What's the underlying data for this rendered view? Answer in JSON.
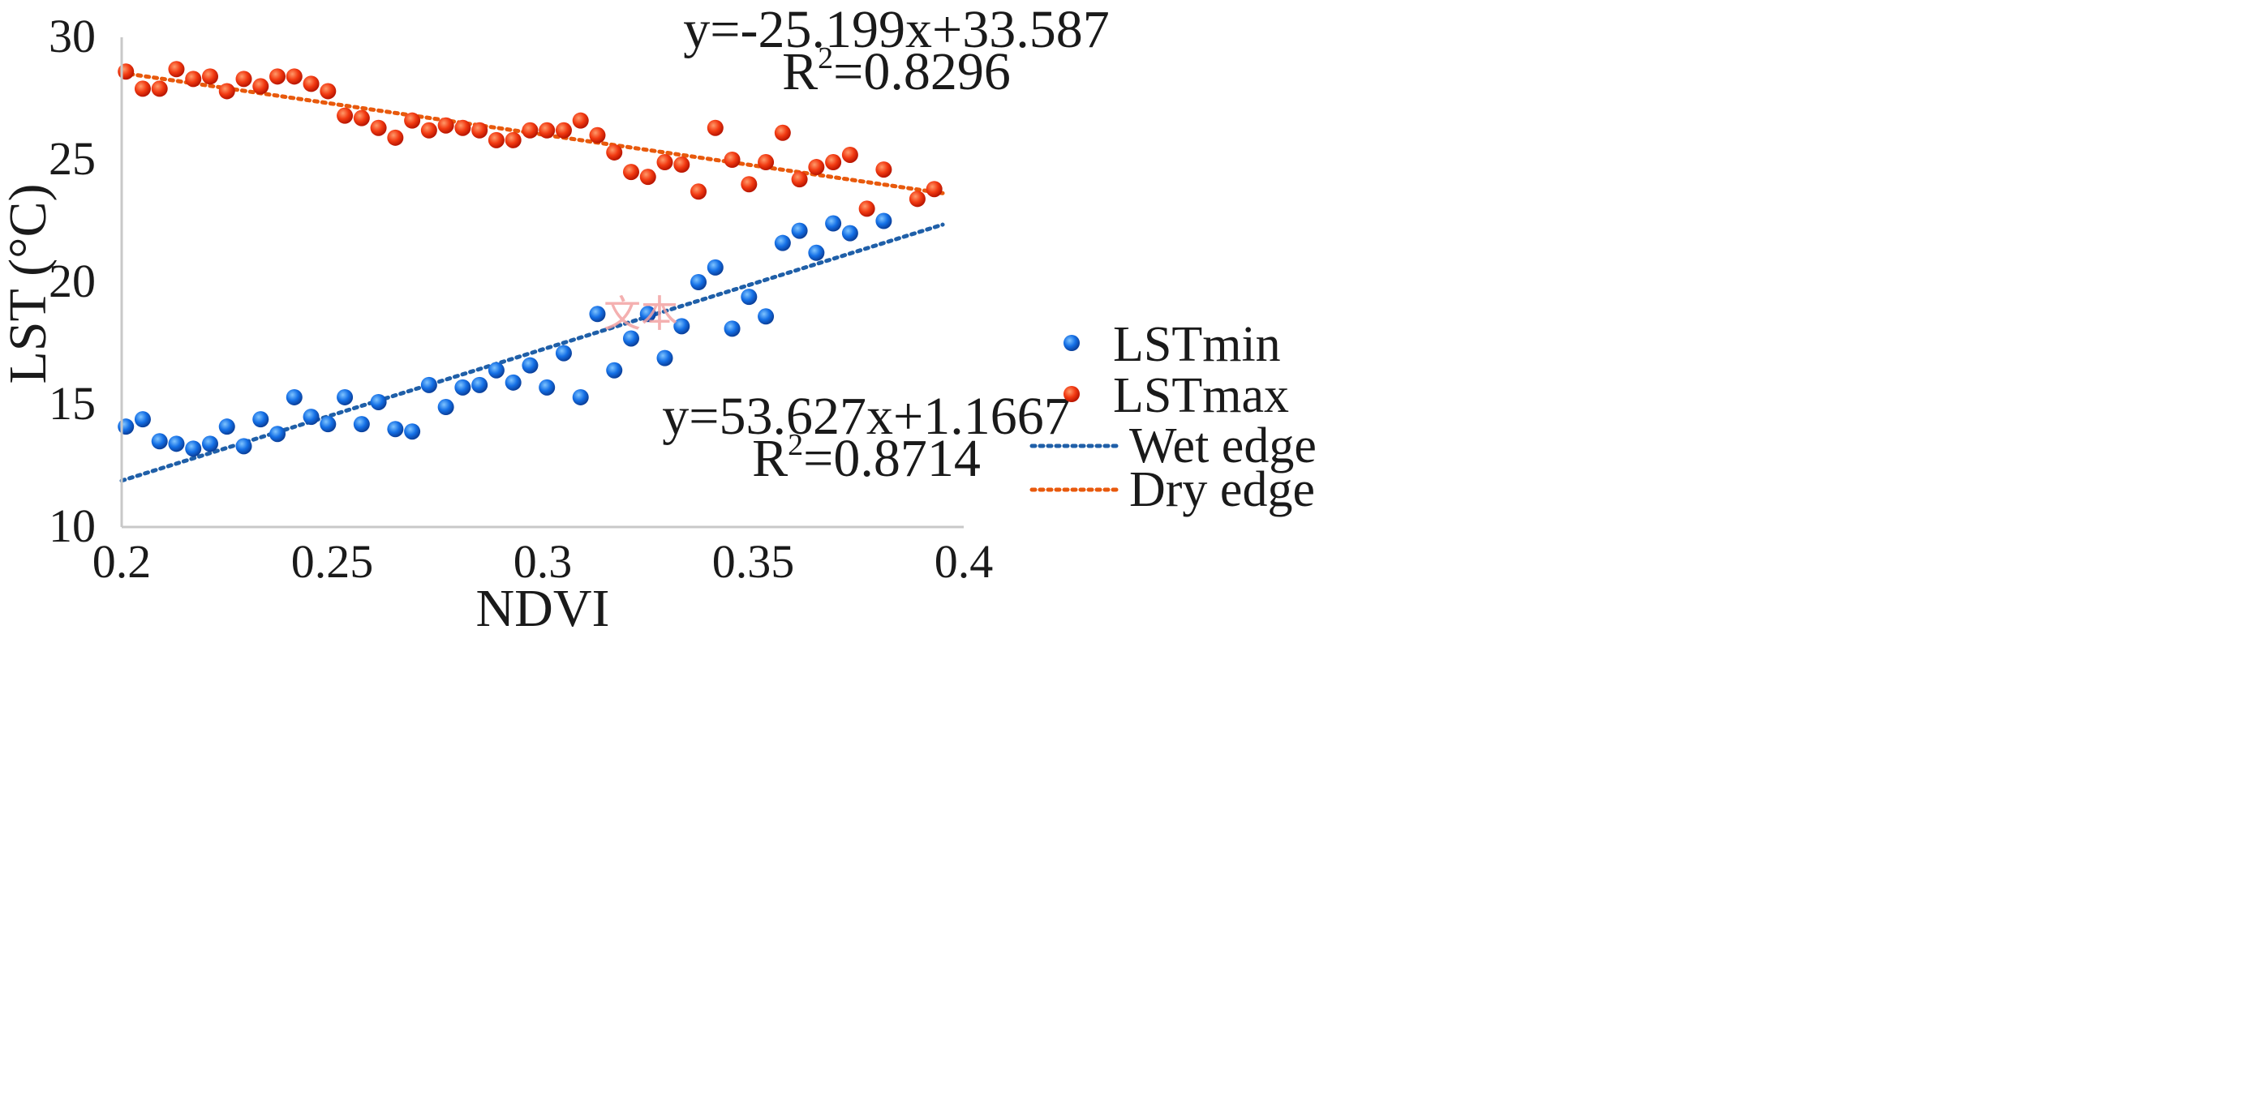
{
  "chart_data": {
    "type": "scatter",
    "title": "",
    "xlabel": "NDVI",
    "ylabel": "LST (°C)",
    "xlim": [
      0.2,
      0.4
    ],
    "ylim": [
      10,
      30
    ],
    "xticks": [
      "0.2",
      "0.25",
      "0.3",
      "0.35",
      "0.4"
    ],
    "yticks": [
      "10",
      "15",
      "20",
      "25",
      "30"
    ],
    "grid": false,
    "legend_position": "right",
    "series": [
      {
        "name": "LSTmin",
        "kind": "points",
        "color": "#0b63d6",
        "points": [
          [
            0.201,
            14.1
          ],
          [
            0.205,
            14.4
          ],
          [
            0.209,
            13.5
          ],
          [
            0.213,
            13.4
          ],
          [
            0.217,
            13.2
          ],
          [
            0.221,
            13.4
          ],
          [
            0.225,
            14.1
          ],
          [
            0.229,
            13.3
          ],
          [
            0.233,
            14.4
          ],
          [
            0.237,
            13.8
          ],
          [
            0.241,
            15.3
          ],
          [
            0.245,
            14.5
          ],
          [
            0.249,
            14.2
          ],
          [
            0.253,
            15.3
          ],
          [
            0.257,
            14.2
          ],
          [
            0.261,
            15.1
          ],
          [
            0.265,
            14.0
          ],
          [
            0.269,
            13.9
          ],
          [
            0.273,
            15.8
          ],
          [
            0.277,
            14.9
          ],
          [
            0.281,
            15.7
          ],
          [
            0.285,
            15.8
          ],
          [
            0.289,
            16.4
          ],
          [
            0.293,
            15.9
          ],
          [
            0.297,
            16.6
          ],
          [
            0.301,
            15.7
          ],
          [
            0.305,
            17.1
          ],
          [
            0.309,
            15.3
          ],
          [
            0.313,
            18.7
          ],
          [
            0.317,
            16.4
          ],
          [
            0.321,
            17.7
          ],
          [
            0.325,
            18.7
          ],
          [
            0.329,
            16.9
          ],
          [
            0.333,
            18.2
          ],
          [
            0.337,
            20.0
          ],
          [
            0.341,
            20.6
          ],
          [
            0.345,
            18.1
          ],
          [
            0.349,
            19.4
          ],
          [
            0.353,
            18.6
          ],
          [
            0.357,
            21.6
          ],
          [
            0.361,
            22.1
          ],
          [
            0.365,
            21.2
          ],
          [
            0.369,
            22.4
          ],
          [
            0.373,
            22.0
          ],
          [
            0.381,
            22.5
          ]
        ]
      },
      {
        "name": "LSTmax",
        "kind": "points",
        "color": "#f02a10",
        "points": [
          [
            0.201,
            28.6
          ],
          [
            0.205,
            27.9
          ],
          [
            0.209,
            27.9
          ],
          [
            0.213,
            28.7
          ],
          [
            0.217,
            28.3
          ],
          [
            0.221,
            28.4
          ],
          [
            0.225,
            27.8
          ],
          [
            0.229,
            28.3
          ],
          [
            0.233,
            28.0
          ],
          [
            0.237,
            28.4
          ],
          [
            0.241,
            28.4
          ],
          [
            0.245,
            28.1
          ],
          [
            0.249,
            27.8
          ],
          [
            0.253,
            26.8
          ],
          [
            0.257,
            26.7
          ],
          [
            0.261,
            26.3
          ],
          [
            0.265,
            25.9
          ],
          [
            0.269,
            26.6
          ],
          [
            0.273,
            26.2
          ],
          [
            0.277,
            26.4
          ],
          [
            0.281,
            26.3
          ],
          [
            0.285,
            26.2
          ],
          [
            0.289,
            25.8
          ],
          [
            0.293,
            25.8
          ],
          [
            0.297,
            26.2
          ],
          [
            0.301,
            26.2
          ],
          [
            0.305,
            26.2
          ],
          [
            0.309,
            26.6
          ],
          [
            0.313,
            26.0
          ],
          [
            0.317,
            25.3
          ],
          [
            0.321,
            24.5
          ],
          [
            0.325,
            24.3
          ],
          [
            0.329,
            24.9
          ],
          [
            0.333,
            24.8
          ],
          [
            0.337,
            23.7
          ],
          [
            0.341,
            26.3
          ],
          [
            0.345,
            25.0
          ],
          [
            0.349,
            24.0
          ],
          [
            0.353,
            24.9
          ],
          [
            0.357,
            26.1
          ],
          [
            0.361,
            24.2
          ],
          [
            0.365,
            24.7
          ],
          [
            0.369,
            24.9
          ],
          [
            0.373,
            25.2
          ],
          [
            0.377,
            23.0
          ],
          [
            0.381,
            24.6
          ],
          [
            0.389,
            23.4
          ],
          [
            0.393,
            23.8
          ]
        ]
      },
      {
        "name": "Wet edge",
        "kind": "trendline",
        "color": "#1f5fa8",
        "slope": 53.627,
        "intercept": 1.1667,
        "x_range": [
          0.2,
          0.395
        ]
      },
      {
        "name": "Dry edge",
        "kind": "trendline",
        "color": "#e8590c",
        "slope": -25.199,
        "intercept": 33.587,
        "x_range": [
          0.2,
          0.395
        ]
      }
    ],
    "annotations": {
      "dry_equation": "y=-25.199x+33.587",
      "dry_r2_label": "R",
      "dry_r2_sup": "2",
      "dry_r2_value": "=0.8296",
      "wet_equation": "y=53.627x+1.1667",
      "wet_r2_label": "R",
      "wet_r2_sup": "2",
      "wet_r2_value": "=0.8714"
    },
    "legend": [
      "LSTmin",
      "LSTmax",
      "Wet edge",
      "Dry edge"
    ]
  },
  "watermark": "文本"
}
